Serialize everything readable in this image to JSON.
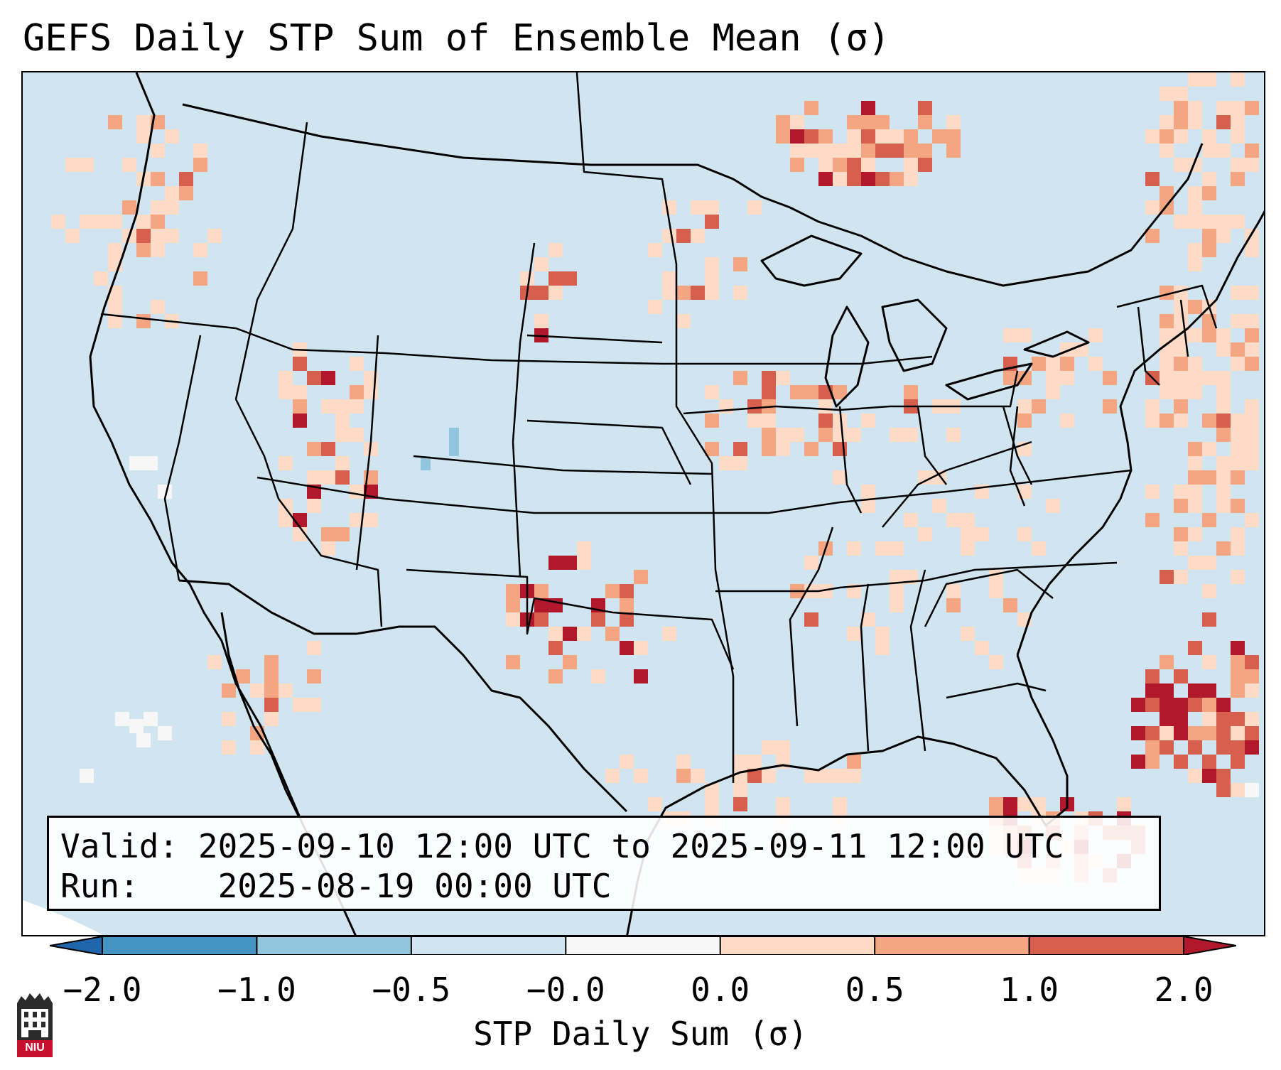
{
  "title": "GEFS Daily STP Sum of Ensemble Mean (σ)",
  "info": {
    "valid_label": "Valid:",
    "valid_value": "2025-09-10 12:00 UTC to 2025-09-11 12:00 UTC",
    "run_label": "Run:",
    "run_value": "2025-08-19 00:00 UTC"
  },
  "colorbar": {
    "label": "STP Daily Sum (σ)",
    "ticks": [
      "−2.0",
      "−1.0",
      "−0.5",
      "−0.0",
      "0.0",
      "0.5",
      "1.0",
      "2.0"
    ],
    "colors": [
      "#2166ac",
      "#4393c3",
      "#92c5de",
      "#d1e5f0",
      "#f7f7f7",
      "#fddbc7",
      "#f4a582",
      "#d6604d",
      "#b2182b"
    ]
  },
  "logo": {
    "text": "NIU",
    "icon": "university-tower-icon"
  },
  "map": {
    "background_color": "#d1e5f0",
    "description_icon": "conus-map-icon"
  }
}
